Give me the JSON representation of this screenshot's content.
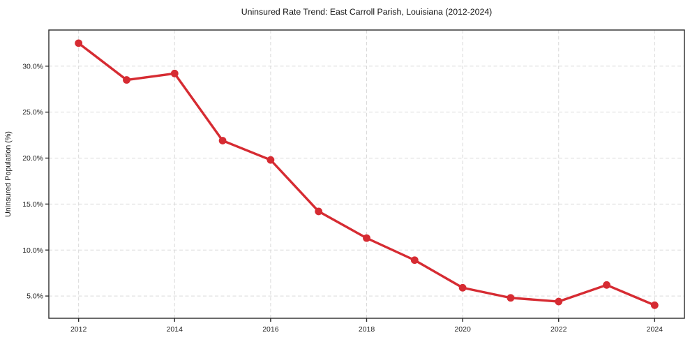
{
  "figure": {
    "title": "Uninsured Rate Trend: East Carroll Parish, Louisiana (2012-2024)",
    "ylabel": "Uninsured Population (%)"
  },
  "colors": {
    "line": "#d62b32",
    "marker": "#d62b32",
    "grid": "#d9d9d9",
    "spine": "#2b2b2b",
    "tick": "#2b2b2b",
    "background": "#ffffff",
    "plot_background": "#ffffff",
    "text": "#1f1f1f"
  },
  "chart_data": {
    "type": "line",
    "title": "Uninsured Rate Trend: East Carroll Parish, Louisiana (2012-2024)",
    "xlabel": "",
    "ylabel": "Uninsured Population (%)",
    "x": [
      2012,
      2013,
      2014,
      2015,
      2016,
      2017,
      2018,
      2019,
      2020,
      2021,
      2022,
      2023,
      2024
    ],
    "series": [
      {
        "name": "Uninsured Population (%)",
        "values": [
          32.5,
          28.5,
          29.2,
          21.9,
          19.8,
          14.2,
          11.3,
          8.9,
          5.9,
          4.8,
          4.4,
          6.2,
          4.0
        ]
      }
    ],
    "xlim": [
      2011.38,
      2024.62
    ],
    "ylim": [
      2.58,
      33.93
    ],
    "x_tick_values": [
      2012,
      2014,
      2016,
      2018,
      2020,
      2022,
      2024
    ],
    "x_tick_labels": [
      "2012",
      "2014",
      "2016",
      "2018",
      "2020",
      "2022",
      "2024"
    ],
    "y_tick_values": [
      5,
      10,
      15,
      20,
      25,
      30
    ],
    "y_tick_labels": [
      "5.0%",
      "10.0%",
      "15.0%",
      "20.0%",
      "25.0%",
      "30.0%"
    ],
    "grid": true,
    "grid_style": "dashed",
    "legend_position": "none",
    "marker_shape": "circle"
  }
}
